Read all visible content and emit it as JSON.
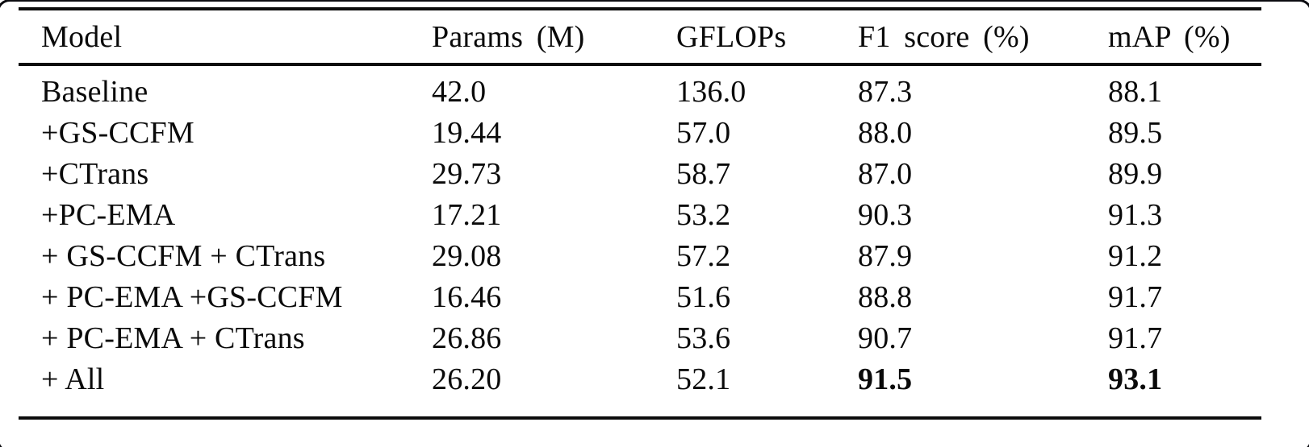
{
  "page": {
    "background_color": "#ffffff",
    "frame_color": "#0b0b10",
    "text_color": "#0a0a0a",
    "rule_color": "#0c0c0c"
  },
  "table": {
    "columns": [
      "Model",
      "Params (M)",
      "GFLOPs",
      "F1 score (%)",
      "mAP (%)"
    ],
    "rows": [
      {
        "model": "Baseline",
        "params": "42.0",
        "gflops": "136.0",
        "f1": "87.3",
        "map": "88.1"
      },
      {
        "model": "+GS-CCFM",
        "params": "19.44",
        "gflops": "57.0",
        "f1": "88.0",
        "map": "89.5"
      },
      {
        "model": "+CTrans",
        "params": "29.73",
        "gflops": "58.7",
        "f1": "87.0",
        "map": "89.9"
      },
      {
        "model": "+PC-EMA",
        "params": "17.21",
        "gflops": "53.2",
        "f1": "90.3",
        "map": "91.3"
      },
      {
        "model": "+ GS-CCFM + CTrans",
        "params": "29.08",
        "gflops": "57.2",
        "f1": "87.9",
        "map": "91.2"
      },
      {
        "model": "+ PC-EMA +GS-CCFM",
        "params": "16.46",
        "gflops": "51.6",
        "f1": "88.8",
        "map": "91.7"
      },
      {
        "model": "+ PC-EMA + CTrans",
        "params": "26.86",
        "gflops": "53.6",
        "f1": "90.7",
        "map": "91.7"
      },
      {
        "model": "+ All",
        "params": "26.20",
        "gflops": "52.1",
        "f1": "91.5",
        "map": "93.1",
        "emphasis": "f1,map"
      }
    ]
  }
}
